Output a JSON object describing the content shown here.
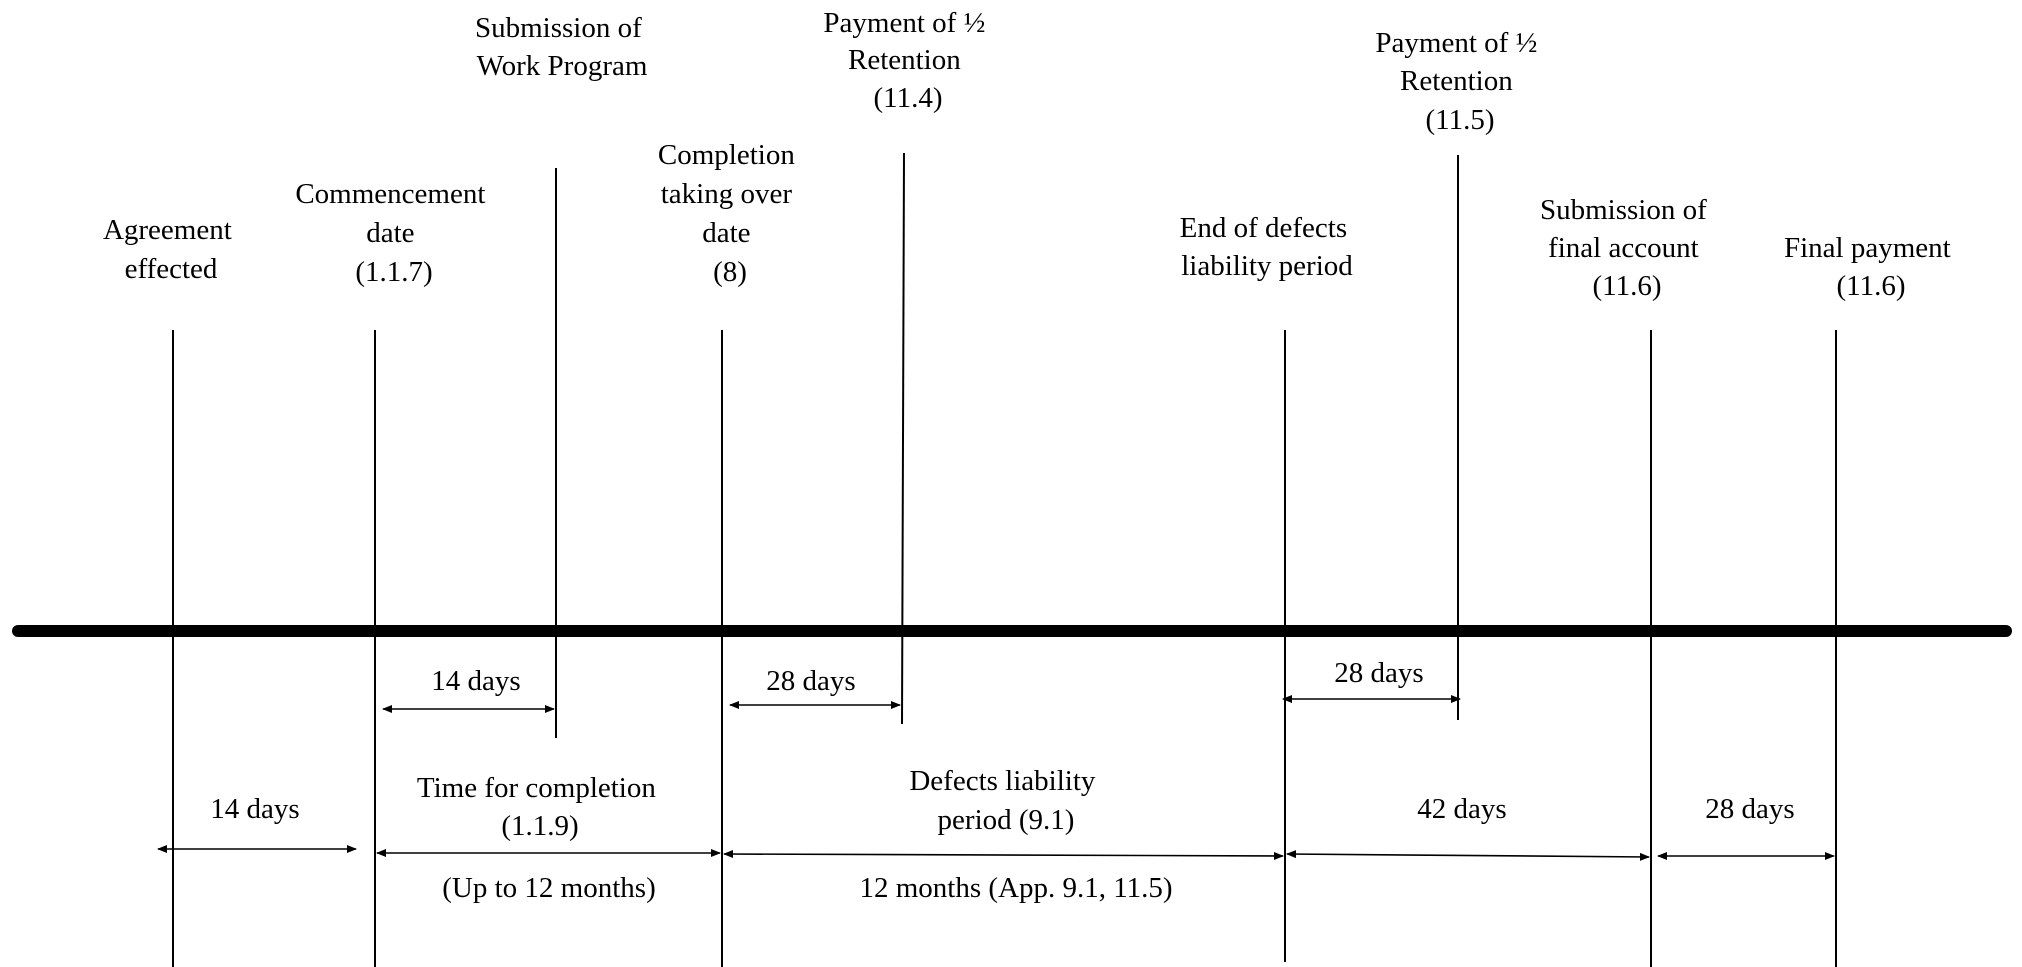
{
  "milestones": {
    "agreement": [
      "Agreement",
      "effected"
    ],
    "commencement": [
      "Commencement",
      "date",
      "(1.1.7)"
    ],
    "work_program": [
      "Submission of",
      "Work Program"
    ],
    "completion": [
      "Completion",
      "taking over",
      "date",
      "(8)"
    ],
    "retention_1": [
      "Payment of ½",
      "Retention",
      "(11.4)"
    ],
    "end_defects": [
      "End of defects",
      "liability period"
    ],
    "retention_2": [
      "Payment of ½",
      "Retention",
      "(11.5)"
    ],
    "final_account": [
      "Submission of",
      "final account",
      "(11.6)"
    ],
    "final_payment": [
      "Final payment",
      "(11.6)"
    ]
  },
  "intervals": {
    "work_program_days": "14 days",
    "retention_1_days": "28 days",
    "retention_2_days": "28 days",
    "agreement_days": "14 days",
    "time_for_completion": [
      "Time for completion",
      "(1.1.9)"
    ],
    "time_for_completion_note": "(Up to 12 months)",
    "defects_period": [
      "Defects liability",
      "period (9.1)"
    ],
    "defects_period_note": "12 months (App. 9.1, 11.5)",
    "final_account_days": "42 days",
    "final_payment_days": "28 days"
  },
  "colors": {
    "ink": "#000000",
    "background": "#ffffff"
  }
}
